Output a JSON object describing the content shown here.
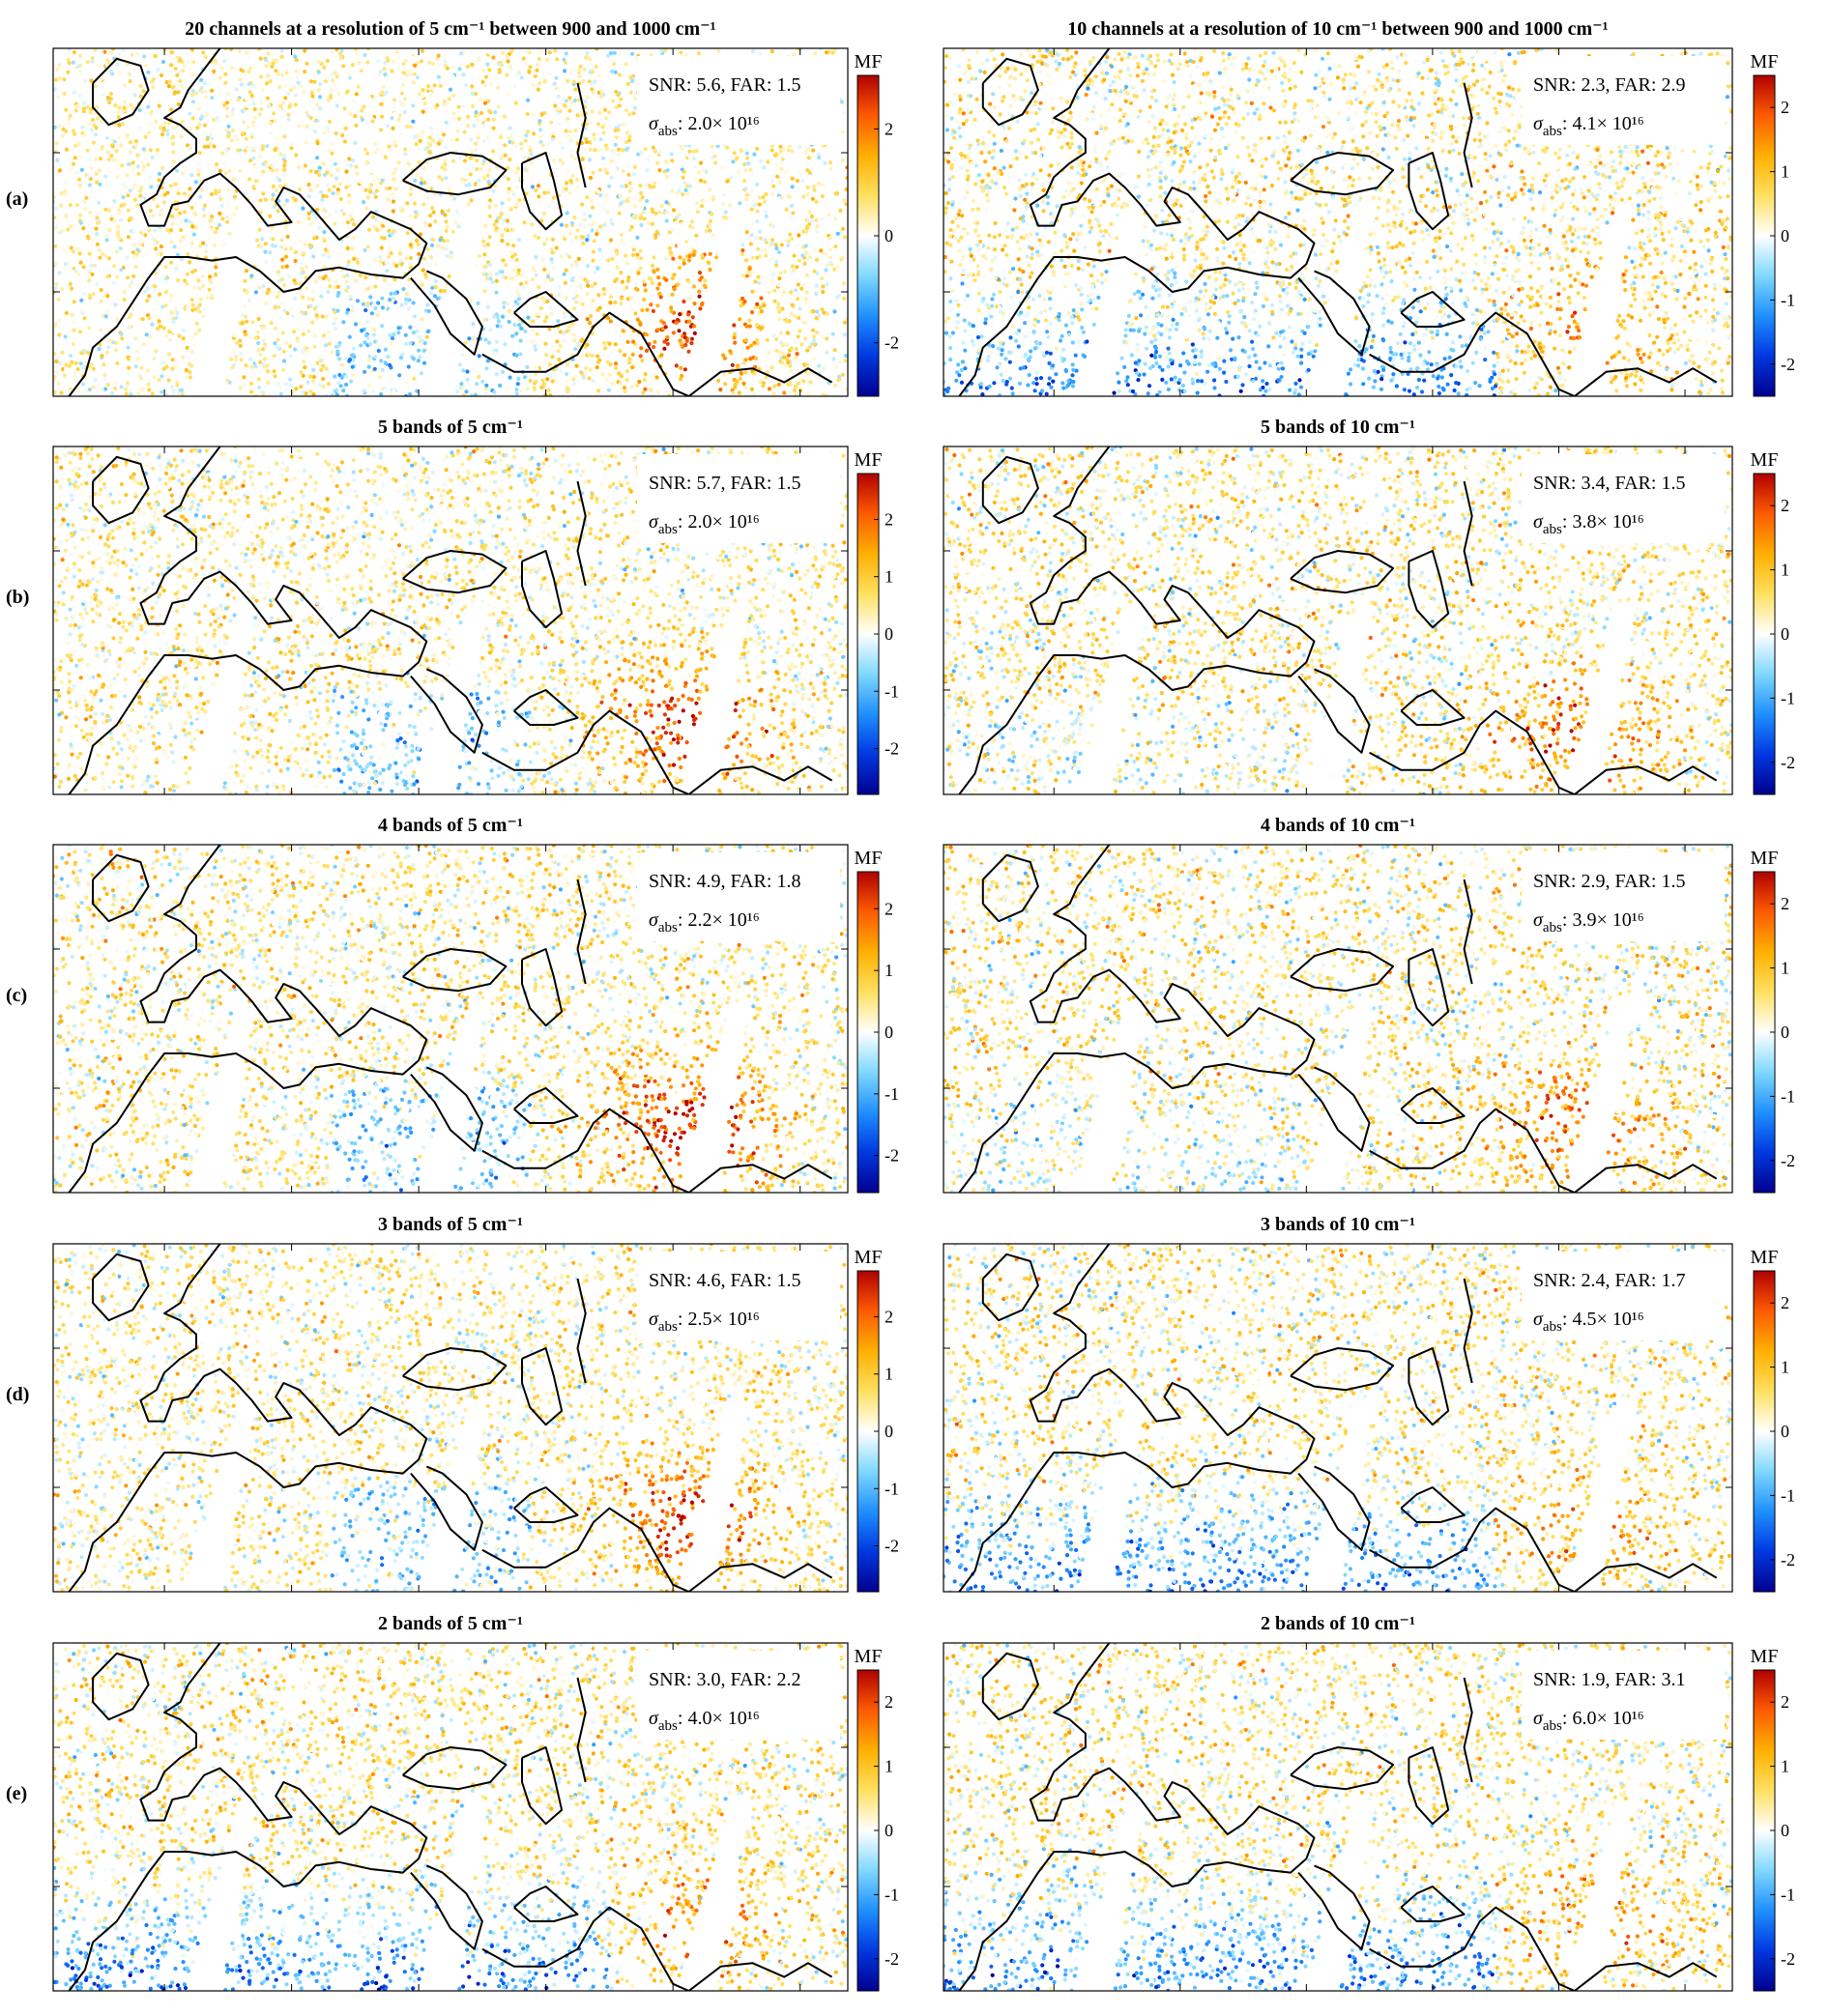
{
  "figure": {
    "row_labels": [
      "(a)",
      "(b)",
      "(c)",
      "(d)",
      "(e)"
    ],
    "colorbar_label": "MF",
    "colors": {
      "coastline": "#000000",
      "colormap": [
        "#00008f",
        "#0038e0",
        "#1f8fff",
        "#7fd8ff",
        "#ffffff",
        "#ffe060",
        "#ffb000",
        "#ff5a00",
        "#b00000"
      ]
    }
  },
  "chart_data": [
    {
      "type": "scatter",
      "row": "(a)",
      "col": 0,
      "title": "20 channels at a resolution of 5 cm⁻¹ between 900 and 1000 cm⁻¹",
      "stats_line1": "SNR: 5.6, FAR: 1.5",
      "sigma_label": "abs",
      "sigma_value": "2.0× 10¹⁶",
      "colorbar": {
        "label": "MF",
        "range": [
          -3,
          3
        ],
        "ticks": [
          -2,
          0,
          2
        ],
        "tick_labels": [
          "-2",
          "0",
          "2"
        ]
      },
      "pattern": "plume"
    },
    {
      "type": "scatter",
      "row": "(a)",
      "col": 1,
      "title": "10 channels at a resolution of 10 cm⁻¹ between 900 and 1000 cm⁻¹",
      "stats_line1": "SNR: 2.3, FAR: 2.9",
      "sigma_label": "abs",
      "sigma_value": "4.1× 10¹⁶",
      "colorbar": {
        "label": "MF",
        "range": [
          -2.5,
          2.5
        ],
        "ticks": [
          -2,
          -1,
          0,
          1,
          2
        ],
        "tick_labels": [
          "-2",
          "-1",
          "0",
          "1",
          "2"
        ]
      },
      "pattern": "south_blue"
    },
    {
      "type": "scatter",
      "row": "(b)",
      "col": 0,
      "title": "5 bands of 5 cm⁻¹",
      "stats_line1": "SNR: 5.7, FAR: 1.5",
      "sigma_label": "abs",
      "sigma_value": "2.0× 10¹⁶",
      "colorbar": {
        "label": "MF",
        "range": [
          -2.8,
          2.8
        ],
        "ticks": [
          -2,
          -1,
          0,
          1,
          2
        ],
        "tick_labels": [
          "-2",
          "-1",
          "0",
          "1",
          "2"
        ]
      },
      "pattern": "plume"
    },
    {
      "type": "scatter",
      "row": "(b)",
      "col": 1,
      "title": "5 bands of 10 cm⁻¹",
      "stats_line1": "SNR: 3.4, FAR: 1.5",
      "sigma_label": "abs",
      "sigma_value": "3.8× 10¹⁶",
      "colorbar": {
        "label": "MF",
        "range": [
          -2.5,
          2.5
        ],
        "ticks": [
          -2,
          -1,
          0,
          1,
          2
        ],
        "tick_labels": [
          "-2",
          "-1",
          "0",
          "1",
          "2"
        ]
      },
      "pattern": "weak_plume"
    },
    {
      "type": "scatter",
      "row": "(c)",
      "col": 0,
      "title": "4 bands of 5 cm⁻¹",
      "stats_line1": "SNR: 4.9, FAR: 1.8",
      "sigma_label": "abs",
      "sigma_value": "2.2× 10¹⁶",
      "colorbar": {
        "label": "MF",
        "range": [
          -2.6,
          2.6
        ],
        "ticks": [
          -2,
          -1,
          0,
          1,
          2
        ],
        "tick_labels": [
          "-2",
          "-1",
          "0",
          "1",
          "2"
        ]
      },
      "pattern": "plume"
    },
    {
      "type": "scatter",
      "row": "(c)",
      "col": 1,
      "title": "4 bands of 10 cm⁻¹",
      "stats_line1": "SNR: 2.9, FAR: 1.5",
      "sigma_label": "abs",
      "sigma_value": "3.9× 10¹⁶",
      "colorbar": {
        "label": "MF",
        "range": [
          -2.5,
          2.5
        ],
        "ticks": [
          -2,
          -1,
          0,
          1,
          2
        ],
        "tick_labels": [
          "-2",
          "-1",
          "0",
          "1",
          "2"
        ]
      },
      "pattern": "weak_plume"
    },
    {
      "type": "scatter",
      "row": "(d)",
      "col": 0,
      "title": "3 bands of 5 cm⁻¹",
      "stats_line1": "SNR: 4.6, FAR: 1.5",
      "sigma_label": "abs",
      "sigma_value": "2.5× 10¹⁶",
      "colorbar": {
        "label": "MF",
        "range": [
          -2.8,
          2.8
        ],
        "ticks": [
          -2,
          -1,
          0,
          1,
          2
        ],
        "tick_labels": [
          "-2",
          "-1",
          "0",
          "1",
          "2"
        ]
      },
      "pattern": "plume"
    },
    {
      "type": "scatter",
      "row": "(d)",
      "col": 1,
      "title": "3 bands of 10 cm⁻¹",
      "stats_line1": "SNR: 2.4, FAR: 1.7",
      "sigma_label": "abs",
      "sigma_value": "4.5× 10¹⁶",
      "colorbar": {
        "label": "MF",
        "range": [
          -2.5,
          2.5
        ],
        "ticks": [
          -2,
          -1,
          0,
          1,
          2
        ],
        "tick_labels": [
          "-2",
          "-1",
          "0",
          "1",
          "2"
        ]
      },
      "pattern": "south_blue"
    },
    {
      "type": "scatter",
      "row": "(e)",
      "col": 0,
      "title": "2 bands of 5 cm⁻¹",
      "stats_line1": "SNR: 3.0, FAR: 2.2",
      "sigma_label": "abs",
      "sigma_value": "4.0× 10¹⁶",
      "colorbar": {
        "label": "MF",
        "range": [
          -2.5,
          2.5
        ],
        "ticks": [
          -2,
          -1,
          0,
          1,
          2
        ],
        "tick_labels": [
          "-2",
          "-1",
          "0",
          "1",
          "2"
        ]
      },
      "pattern": "south_blue"
    },
    {
      "type": "scatter",
      "row": "(e)",
      "col": 1,
      "title": "2 bands of 10 cm⁻¹",
      "stats_line1": "SNR: 1.9, FAR: 3.1",
      "sigma_label": "abs",
      "sigma_value": "6.0× 10¹⁶",
      "colorbar": {
        "label": "MF",
        "range": [
          -2.5,
          2.5
        ],
        "ticks": [
          -2,
          -1,
          0,
          1,
          2
        ],
        "tick_labels": [
          "-2",
          "-1",
          "0",
          "1",
          "2"
        ]
      },
      "pattern": "south_blue"
    }
  ]
}
